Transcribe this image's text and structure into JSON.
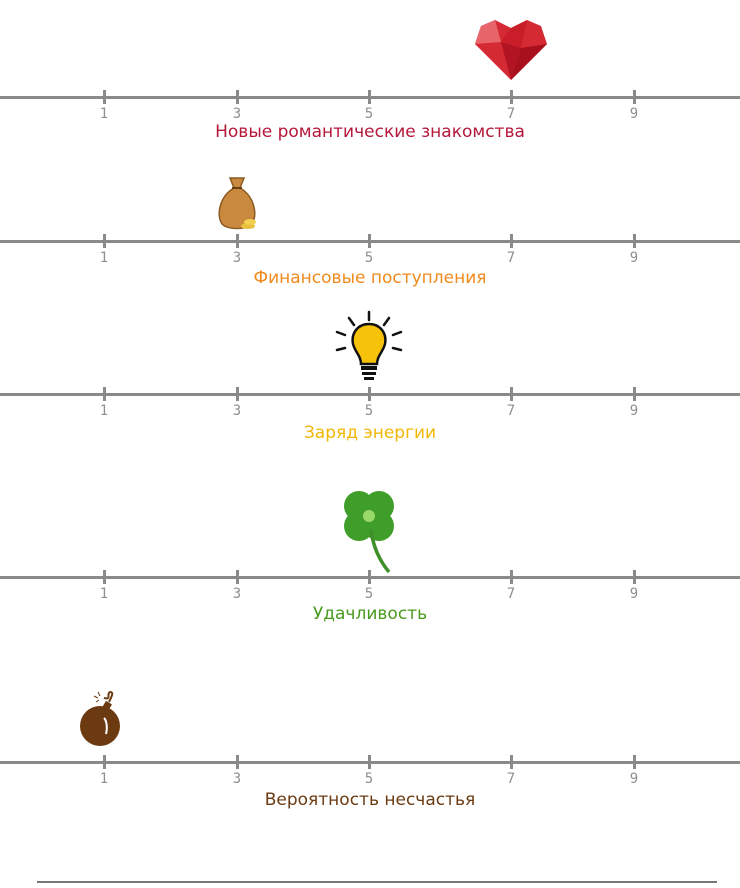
{
  "scale": {
    "ticks": [
      "1",
      "3",
      "5",
      "7",
      "9"
    ]
  },
  "rows": [
    {
      "label": "Новые романтические знакомства",
      "value": 7,
      "icon": "heart-icon",
      "color": "#b5173a"
    },
    {
      "label": "Финансовые поступления",
      "value": 3,
      "icon": "money-bag-icon",
      "color": "#f08a1c"
    },
    {
      "label": "Заряд энергии",
      "value": 5,
      "icon": "light-bulb-icon",
      "color": "#f2b705"
    },
    {
      "label": "Удачливость",
      "value": 5,
      "icon": "four-leaf-clover-icon",
      "color": "#4a9a1e"
    },
    {
      "label": "Вероятность несчастья",
      "value": 1,
      "icon": "bomb-icon",
      "color": "#6b3a10"
    }
  ]
}
